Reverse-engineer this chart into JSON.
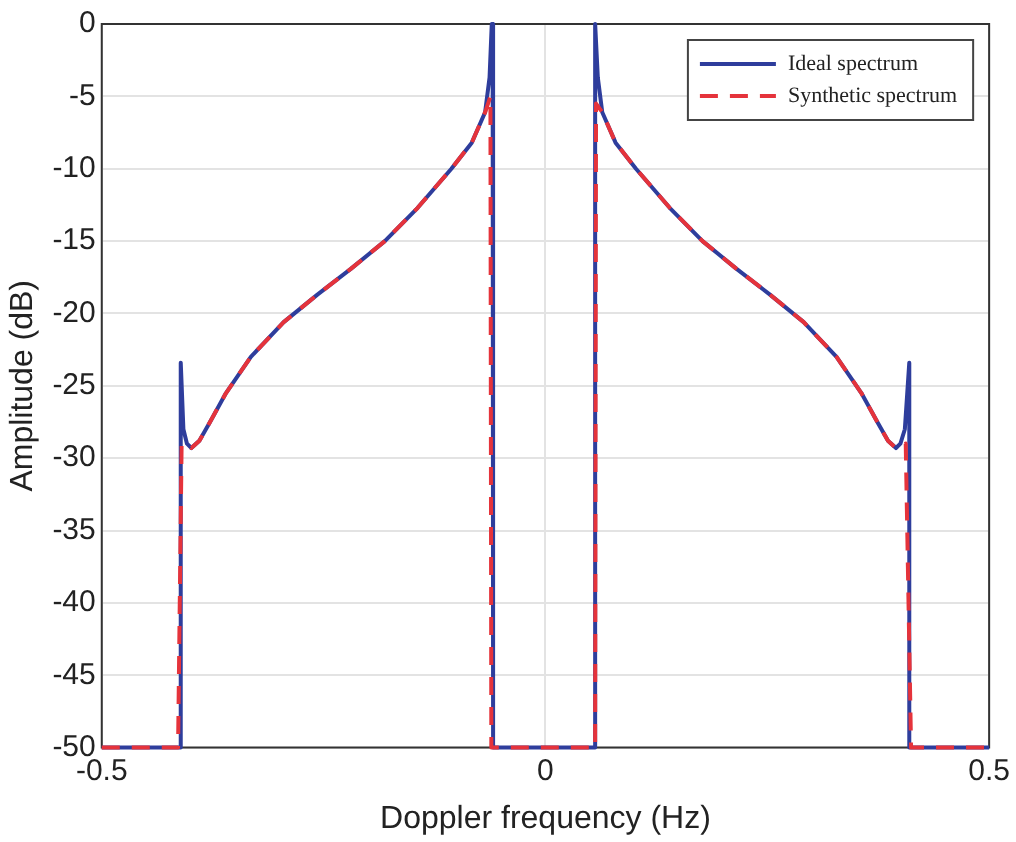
{
  "chart_data": {
    "type": "line",
    "xlabel": "Doppler frequency (Hz)",
    "ylabel": "Amplitude (dB)",
    "xlim": [
      -0.5,
      0.5
    ],
    "xticks": [
      -0.5,
      0,
      0.5
    ],
    "ylim": [
      -50,
      0
    ],
    "yticks": [
      -50,
      -45,
      -40,
      -35,
      -30,
      -25,
      -20,
      -15,
      -10,
      -5,
      0
    ],
    "grid": true,
    "legend": "top right",
    "marker": "none",
    "series": [
      {
        "name": "Ideal spectrum",
        "color": "#2e3d9c",
        "line_style": "solid",
        "x": [
          -0.5,
          -0.411,
          -0.411,
          -0.408,
          -0.404,
          -0.399,
          -0.39,
          -0.378,
          -0.36,
          -0.332,
          -0.295,
          -0.257,
          -0.219,
          -0.181,
          -0.144,
          -0.106,
          -0.083,
          -0.068,
          -0.063,
          -0.0605,
          -0.0595,
          -0.059,
          0.055,
          0.0555,
          0.0565,
          0.059,
          0.064,
          0.079,
          0.102,
          0.14,
          0.177,
          0.215,
          0.253,
          0.291,
          0.328,
          0.356,
          0.374,
          0.386,
          0.395,
          0.4,
          0.405,
          0.41,
          0.41,
          0.5
        ],
        "values": [
          -50,
          -50,
          -23.4,
          -28,
          -29,
          -29.3,
          -28.8,
          -27.5,
          -25.5,
          -23,
          -20.6,
          -18.7,
          -16.9,
          -15,
          -12.7,
          -10,
          -8.2,
          -6.1,
          -3.7,
          0,
          0,
          -50,
          -50,
          0,
          0,
          -3.7,
          -6.1,
          -8.2,
          -10,
          -12.7,
          -15,
          -16.9,
          -18.7,
          -20.6,
          -23,
          -25.5,
          -27.5,
          -28.8,
          -29.3,
          -29,
          -28,
          -23.4,
          -50,
          -50
        ]
      },
      {
        "name": "Synthetic spectrum",
        "color": "#e5333b",
        "line_style": "dashed",
        "x": [
          -0.5,
          -0.414,
          -0.41,
          -0.404,
          -0.399,
          -0.39,
          -0.378,
          -0.36,
          -0.332,
          -0.295,
          -0.257,
          -0.219,
          -0.181,
          -0.144,
          -0.106,
          -0.083,
          -0.068,
          -0.062,
          -0.061,
          0.056,
          0.057,
          0.064,
          0.079,
          0.102,
          0.14,
          0.177,
          0.215,
          0.253,
          0.291,
          0.328,
          0.356,
          0.374,
          0.386,
          0.395,
          0.406,
          0.412,
          0.5
        ],
        "values": [
          -50,
          -50,
          -29,
          -29.1,
          -29.3,
          -28.8,
          -27.5,
          -25.5,
          -23,
          -20.6,
          -18.7,
          -16.9,
          -15,
          -12.7,
          -10,
          -8.2,
          -6.1,
          -5,
          -50,
          -50,
          -5.5,
          -6.1,
          -8.2,
          -10,
          -12.7,
          -15,
          -16.9,
          -18.7,
          -20.6,
          -23,
          -25.5,
          -27.5,
          -28.8,
          -29.3,
          -29,
          -50,
          -50
        ]
      }
    ]
  }
}
